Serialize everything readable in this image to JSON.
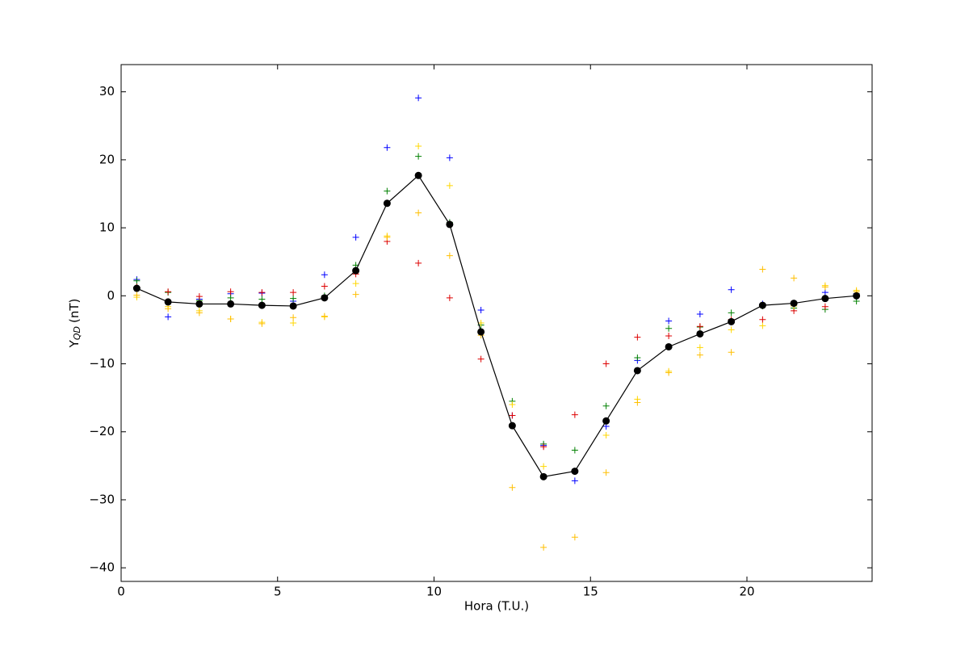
{
  "chart_data": {
    "type": "scatter",
    "xlabel": "Hora (T.U.)",
    "ylabel": [
      "Y",
      "QD",
      "(nT)"
    ],
    "xlim": [
      0,
      24
    ],
    "xticks": [
      0,
      5,
      10,
      15,
      20
    ],
    "ylim": [
      -42,
      34
    ],
    "yticks": [
      {
        "value": -40,
        "label": "−40"
      },
      {
        "value": -30,
        "label": "−30"
      },
      {
        "value": -20,
        "label": "−20"
      },
      {
        "value": -10,
        "label": "−10"
      },
      0,
      10,
      20,
      30
    ],
    "x": [
      0.5,
      1.5,
      2.5,
      3.5,
      4.5,
      5.5,
      6.5,
      7.5,
      8.5,
      9.5,
      10.5,
      11.5,
      12.5,
      13.5,
      14.5,
      15.5,
      16.5,
      17.5,
      18.5,
      19.5,
      20.5,
      21.5,
      22.5,
      23.5
    ],
    "series": [
      {
        "color": "#0000ff",
        "values": [
          2.4,
          -3.1,
          -0.5,
          0.3,
          0.4,
          -0.8,
          3.1,
          8.6,
          21.8,
          29.1,
          20.3,
          -2.1,
          -17.6,
          -22.0,
          -27.2,
          -19.2,
          -9.5,
          -3.7,
          -2.7,
          0.9,
          -1.2,
          -1.5,
          0.5,
          0.3
        ]
      },
      {
        "color": "#008000",
        "values": [
          2.2,
          0.5,
          -0.7,
          -0.3,
          -0.5,
          -0.4,
          0.0,
          4.5,
          15.4,
          20.5,
          10.8,
          -4.3,
          -15.5,
          -21.8,
          -22.7,
          -16.2,
          -9.1,
          -4.8,
          -4.6,
          -2.5,
          -1.5,
          -1.8,
          -2.0,
          -0.8
        ]
      },
      {
        "color": "#dd0000",
        "values": [
          1.3,
          0.6,
          -0.1,
          0.6,
          0.5,
          0.5,
          1.4,
          3.2,
          8.0,
          4.8,
          -0.3,
          -9.3,
          -17.6,
          -22.2,
          -17.5,
          -10.0,
          -6.1,
          -5.9,
          -4.5,
          -3.5,
          -3.5,
          -2.2,
          -1.6,
          0.1
        ]
      },
      {
        "color": "#ffd700",
        "values": [
          -0.2,
          -1.6,
          -2.2,
          -3.4,
          -3.9,
          -4.0,
          -3.1,
          1.8,
          8.8,
          22.0,
          16.2,
          -4.0,
          -16.0,
          -25.1,
          -25.8,
          -20.5,
          -15.2,
          -11.1,
          -7.6,
          -5.0,
          -4.4,
          -1.5,
          1.5,
          0.8
        ]
      },
      {
        "color": "#ffbf00",
        "values": [
          0.1,
          -1.9,
          -2.5,
          -3.4,
          -4.1,
          -3.2,
          -3.0,
          0.2,
          8.6,
          12.2,
          5.9,
          -5.8,
          -28.2,
          -37.0,
          -35.5,
          -26.0,
          -15.7,
          -11.3,
          -8.7,
          -8.3,
          3.9,
          2.6,
          1.3,
          0.6
        ]
      },
      {
        "color": "#000000",
        "style": "line-dot",
        "values": [
          1.1,
          -0.9,
          -1.2,
          -1.2,
          -1.4,
          -1.5,
          -0.3,
          3.7,
          13.6,
          17.7,
          10.5,
          -5.3,
          -19.1,
          -26.6,
          -25.8,
          -18.4,
          -11.0,
          -7.5,
          -5.6,
          -3.8,
          -1.4,
          -1.1,
          -0.4,
          0.0
        ]
      }
    ]
  }
}
